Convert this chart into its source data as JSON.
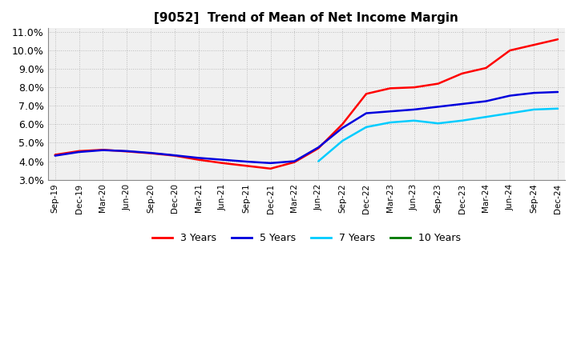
{
  "title": "[9052]  Trend of Mean of Net Income Margin",
  "ylim": [
    0.03,
    0.112
  ],
  "yticks": [
    0.03,
    0.04,
    0.05,
    0.06,
    0.07,
    0.08,
    0.09,
    0.1,
    0.11
  ],
  "ytick_labels": [
    "3.0%",
    "4.0%",
    "5.0%",
    "6.0%",
    "7.0%",
    "8.0%",
    "9.0%",
    "10.0%",
    "11.0%"
  ],
  "background_color": "#ffffff",
  "plot_bg_color": "#f0f0f0",
  "grid_color": "#cccccc",
  "x_labels": [
    "Sep-19",
    "Dec-19",
    "Mar-20",
    "Jun-20",
    "Sep-20",
    "Dec-20",
    "Mar-21",
    "Jun-21",
    "Sep-21",
    "Dec-21",
    "Mar-22",
    "Jun-22",
    "Sep-22",
    "Dec-22",
    "Mar-23",
    "Jun-23",
    "Sep-23",
    "Dec-23",
    "Mar-24",
    "Jun-24",
    "Sep-24",
    "Dec-24"
  ],
  "series": {
    "3 Years": {
      "color": "#ff0000",
      "values": [
        0.0435,
        0.0455,
        0.0462,
        0.0453,
        0.0443,
        0.043,
        0.0408,
        0.039,
        0.0375,
        0.036,
        0.0395,
        0.047,
        0.06,
        0.0765,
        0.0795,
        0.08,
        0.082,
        0.0875,
        0.0905,
        0.1,
        0.103,
        0.106
      ]
    },
    "5 Years": {
      "color": "#0000dd",
      "values": [
        0.043,
        0.045,
        0.046,
        0.0455,
        0.0445,
        0.0432,
        0.0418,
        0.0408,
        0.0398,
        0.039,
        0.04,
        0.0475,
        0.058,
        0.066,
        0.067,
        0.068,
        0.0695,
        0.071,
        0.0725,
        0.0755,
        0.077,
        0.0775
      ]
    },
    "7 Years": {
      "color": "#00ccff",
      "values": [
        null,
        null,
        null,
        null,
        null,
        null,
        null,
        null,
        null,
        null,
        null,
        0.04,
        0.051,
        0.0585,
        0.061,
        0.062,
        0.0605,
        0.062,
        0.064,
        0.066,
        0.068,
        0.0685
      ]
    },
    "10 Years": {
      "color": "#007700",
      "values": [
        null,
        null,
        null,
        null,
        null,
        null,
        null,
        null,
        null,
        null,
        null,
        null,
        null,
        null,
        null,
        null,
        null,
        null,
        null,
        null,
        null,
        null
      ]
    }
  },
  "legend_entries": [
    "3 Years",
    "5 Years",
    "7 Years",
    "10 Years"
  ],
  "legend_colors": [
    "#ff0000",
    "#0000dd",
    "#00ccff",
    "#007700"
  ]
}
